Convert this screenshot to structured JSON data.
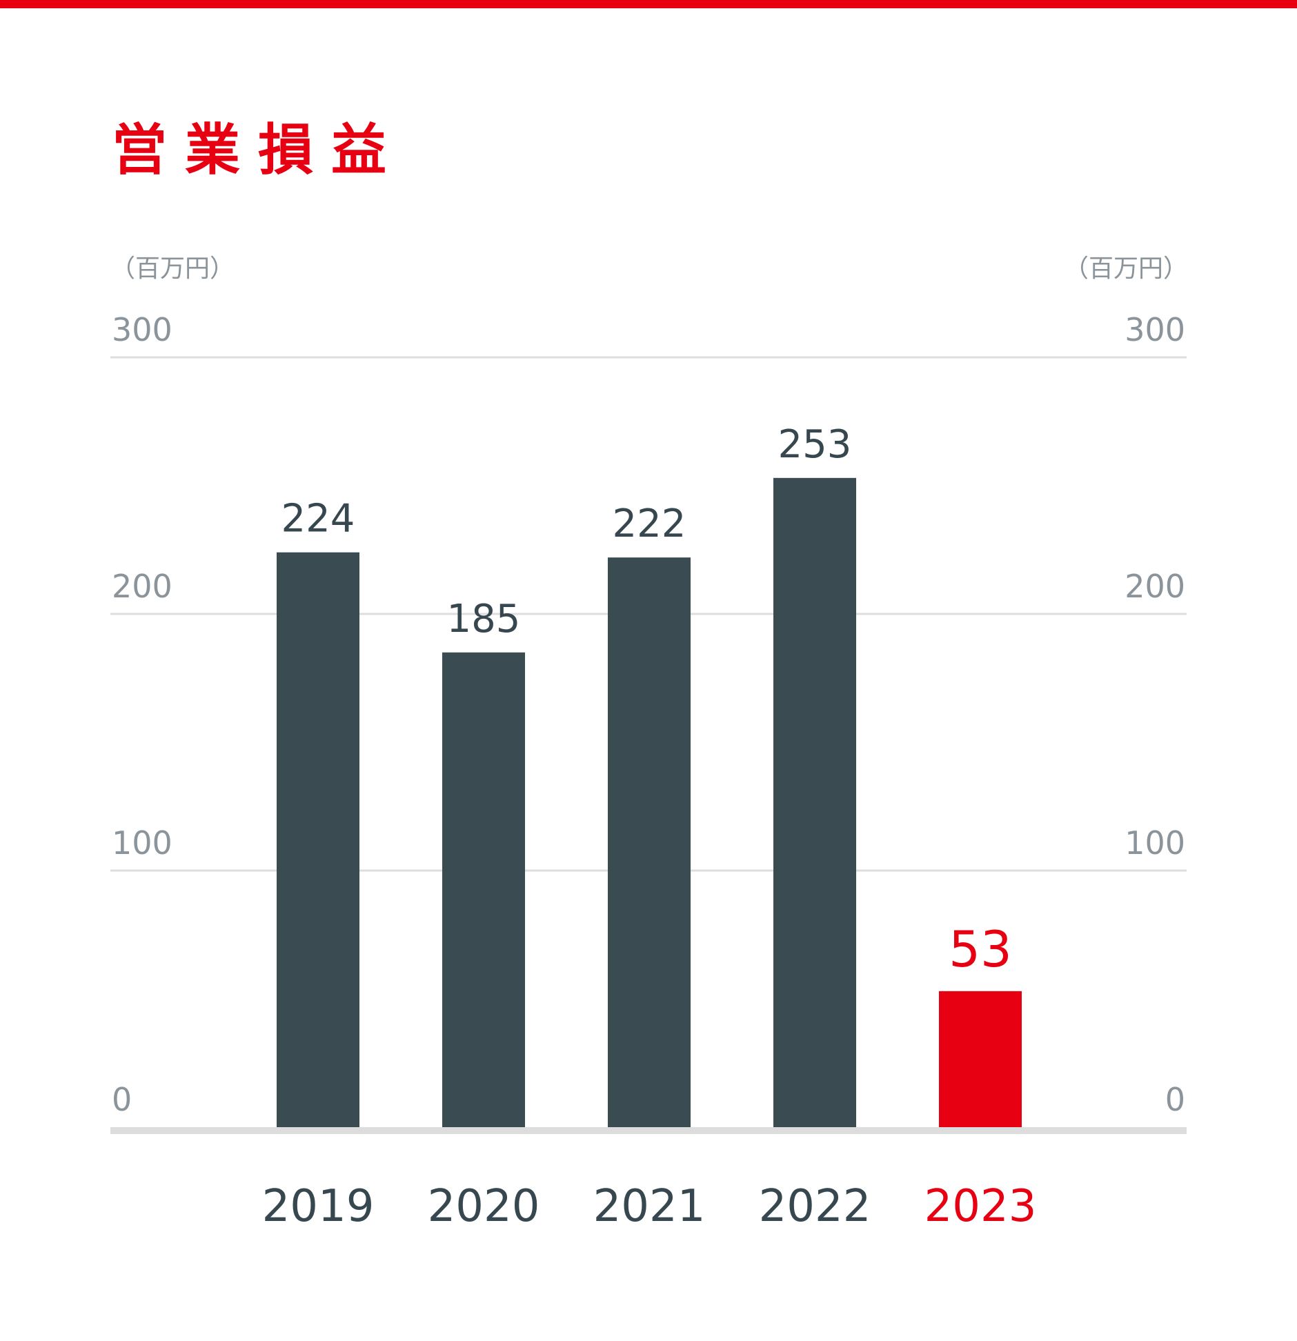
{
  "title": "営業損益",
  "unit_left": "（百万円）",
  "unit_right": "（百万円）",
  "colors": {
    "accent": "#e60012",
    "bar": "#37474f",
    "grid": "#dddddd",
    "tick": "#8a949a"
  },
  "chart_data": {
    "type": "bar",
    "title": "営業損益",
    "xlabel": "",
    "ylabel": "（百万円）",
    "categories": [
      "2019",
      "2020",
      "2021",
      "2022",
      "2023"
    ],
    "values": [
      224,
      185,
      222,
      253,
      53
    ],
    "value_labels": [
      "224",
      "185",
      "222",
      "253",
      "53"
    ],
    "highlight_index": 4,
    "ylim": [
      0,
      300
    ],
    "yticks": [
      0,
      100,
      200,
      300
    ],
    "ytick_labels": [
      "0",
      "100",
      "200",
      "300"
    ],
    "grid": true,
    "legend": "none"
  }
}
